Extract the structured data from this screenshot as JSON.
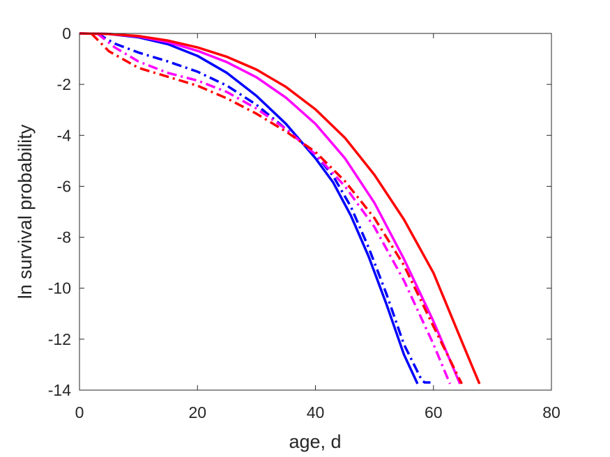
{
  "chart_data": {
    "type": "line",
    "title": "",
    "xlabel": "age, d",
    "ylabel": "ln survival probability",
    "xlim": [
      0,
      80
    ],
    "ylim": [
      -14,
      0
    ],
    "xticks": [
      0,
      20,
      40,
      60,
      80
    ],
    "yticks": [
      0,
      -2,
      -4,
      -6,
      -8,
      -10,
      -12,
      -14
    ],
    "xtick_labels": [
      "0",
      "20",
      "40",
      "60",
      "80"
    ],
    "ytick_labels": [
      "0",
      "-2",
      "-4",
      "-6",
      "-8",
      "-10",
      "-12",
      "-14"
    ],
    "grid": false,
    "legend": "none",
    "series": [
      {
        "color": "#0000ff",
        "style": "solid",
        "x": [
          0,
          5,
          10,
          15,
          20,
          25,
          30,
          35,
          40,
          43,
          46,
          49,
          52,
          55,
          57.3
        ],
        "y": [
          0,
          -0.02,
          -0.15,
          -0.42,
          -0.88,
          -1.55,
          -2.45,
          -3.55,
          -4.9,
          -5.85,
          -7.15,
          -8.75,
          -10.6,
          -12.6,
          -13.75
        ]
      },
      {
        "color": "#0000ff",
        "style": "dashdot",
        "x": [
          3,
          6,
          10,
          15,
          20,
          25,
          30,
          35,
          40,
          43,
          46,
          49,
          52,
          55,
          58,
          58.5,
          59.5
        ],
        "y": [
          0,
          -0.4,
          -0.75,
          -1.1,
          -1.5,
          -2.05,
          -2.8,
          -3.75,
          -4.75,
          -5.6,
          -6.8,
          -8.4,
          -10.2,
          -12.2,
          -13.6,
          -13.7,
          -13.7
        ]
      },
      {
        "color": "#ff00ff",
        "style": "solid",
        "x": [
          0,
          5,
          10,
          15,
          20,
          25,
          30,
          35,
          40,
          45,
          50,
          55,
          60,
          64.5
        ],
        "y": [
          0,
          -0.02,
          -0.12,
          -0.34,
          -0.68,
          -1.13,
          -1.72,
          -2.52,
          -3.55,
          -4.9,
          -6.65,
          -8.85,
          -11.3,
          -13.75
        ]
      },
      {
        "color": "#ff00ff",
        "style": "dashdot",
        "x": [
          3,
          6,
          10,
          15,
          20,
          25,
          30,
          35,
          40,
          45,
          50,
          55,
          60,
          62.8
        ],
        "y": [
          0,
          -0.55,
          -1.1,
          -1.55,
          -1.85,
          -2.3,
          -2.95,
          -3.75,
          -4.75,
          -6.0,
          -7.6,
          -9.7,
          -12.2,
          -13.75
        ]
      },
      {
        "color": "#ff0000",
        "style": "solid",
        "x": [
          0,
          5,
          10,
          15,
          20,
          25,
          30,
          35,
          40,
          45,
          50,
          55,
          60,
          65,
          66.8,
          67.8
        ],
        "y": [
          0,
          -0.02,
          -0.1,
          -0.28,
          -0.55,
          -0.92,
          -1.42,
          -2.1,
          -2.98,
          -4.1,
          -5.55,
          -7.3,
          -9.4,
          -12.2,
          -13.2,
          -13.75
        ]
      },
      {
        "color": "#ff0000",
        "style": "dashdot",
        "x": [
          2,
          5,
          10,
          15,
          20,
          25,
          30,
          35,
          40,
          45,
          50,
          55,
          60,
          64.8
        ],
        "y": [
          0,
          -0.7,
          -1.35,
          -1.7,
          -2.05,
          -2.55,
          -3.15,
          -3.85,
          -4.65,
          -5.8,
          -7.25,
          -9.1,
          -11.5,
          -13.75
        ]
      }
    ]
  }
}
